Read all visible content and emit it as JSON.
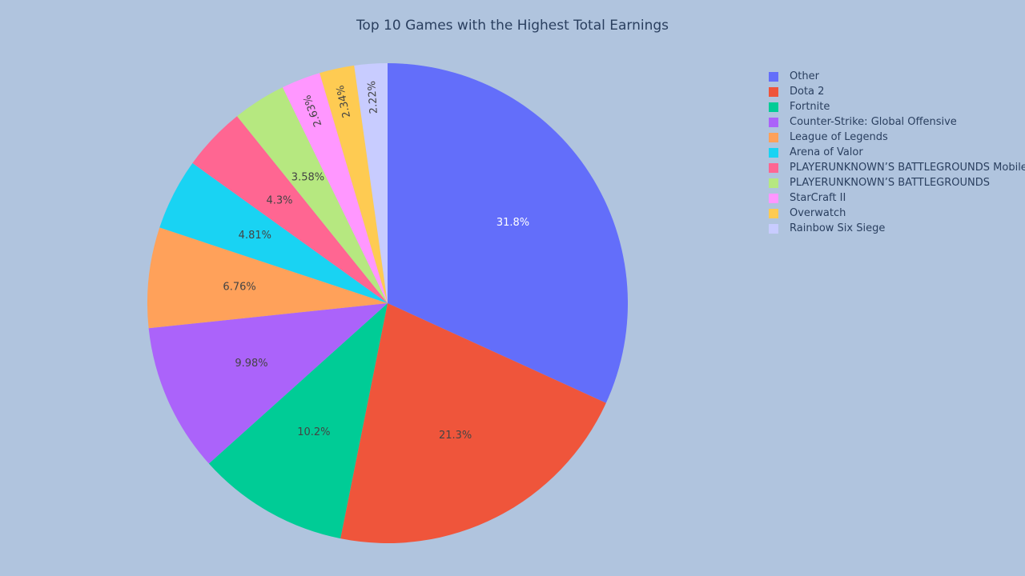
{
  "chart_data": {
    "type": "pie",
    "title": "Top 10 Games with the Highest Total Earnings",
    "labels": [
      "Other",
      "Dota 2",
      "Fortnite",
      "Counter-Strike: Global Offensive",
      "League of Legends",
      "Arena of Valor",
      "PLAYERUNKNOWN’S BATTLEGROUNDS Mobile",
      "PLAYERUNKNOWN’S BATTLEGROUNDS",
      "StarCraft II",
      "Overwatch",
      "Rainbow Six Siege"
    ],
    "values": [
      31.8,
      21.3,
      10.2,
      9.98,
      6.76,
      4.81,
      4.3,
      3.58,
      2.63,
      2.34,
      2.22
    ],
    "value_labels": [
      "31.8%",
      "21.3%",
      "10.2%",
      "9.98%",
      "6.76%",
      "4.81%",
      "4.3%",
      "3.58%",
      "2.63%",
      "2.34%",
      "2.22%"
    ],
    "colors": [
      "#636efa",
      "#ef553b",
      "#00cc96",
      "#ab63fa",
      "#ffa15a",
      "#19d3f3",
      "#ff6692",
      "#b6e880",
      "#ff97ff",
      "#fecb52",
      "#c8ccff"
    ],
    "legend_position": "top-right"
  }
}
